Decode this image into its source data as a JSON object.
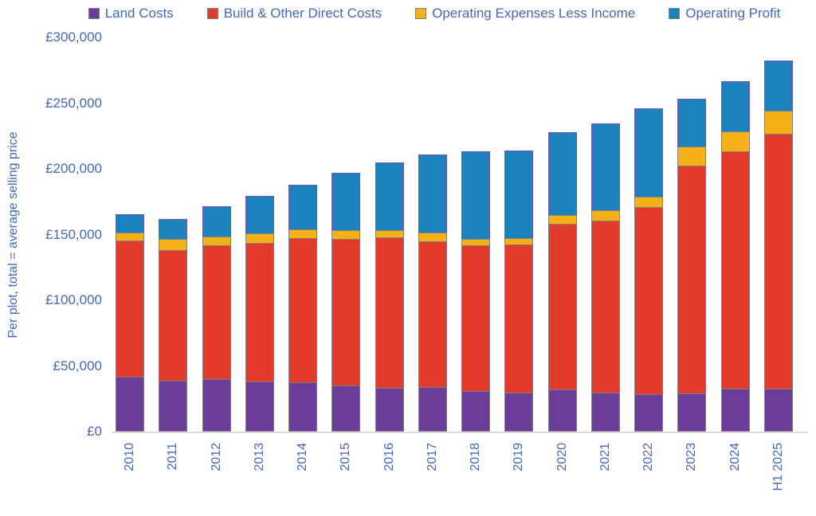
{
  "text_color": "#4468b4",
  "axis_line_color": "#dcdcdc",
  "chart_data": {
    "type": "bar",
    "stacked": true,
    "title": "",
    "xlabel": "",
    "ylabel": "Per plot, total = average selling price",
    "ylim": [
      0,
      300000
    ],
    "ytick_step": 50000,
    "ytick_labels": [
      "£0",
      "£50,000",
      "£100,000",
      "£150,000",
      "£200,000",
      "£250,000",
      "£300,000"
    ],
    "grid": false,
    "legend_position": "top",
    "categories": [
      "2010",
      "2011",
      "2012",
      "2013",
      "2014",
      "2015",
      "2016",
      "2017",
      "2018",
      "2019",
      "2020",
      "2021",
      "2022",
      "2023",
      "2024",
      "H1 2025"
    ],
    "series": [
      {
        "name": "Land Costs",
        "color": "#6b3d98",
        "values": [
          42000,
          38500,
          40000,
          38000,
          37500,
          35000,
          33500,
          34000,
          31000,
          29500,
          32000,
          30000,
          28500,
          29000,
          32500,
          33000
        ]
      },
      {
        "name": "Build & Other Direct Costs",
        "color": "#e23b2b",
        "values": [
          104000,
          100500,
          102500,
          106500,
          110500,
          112500,
          115000,
          111500,
          111500,
          113500,
          127000,
          131000,
          143000,
          174000,
          181500,
          194000
        ]
      },
      {
        "name": "Operating Expenses Less Income",
        "color": "#f6b119",
        "values": [
          6500,
          9000,
          7500,
          7500,
          7000,
          7000,
          6000,
          7000,
          5500,
          5500,
          7000,
          8500,
          8500,
          15500,
          15500,
          18500
        ]
      },
      {
        "name": "Operating Profit",
        "color": "#1c82be",
        "values": [
          14500,
          15500,
          23500,
          29000,
          35000,
          44500,
          52000,
          60500,
          67000,
          67500,
          64000,
          67000,
          68000,
          36500,
          39000,
          38500
        ]
      }
    ],
    "totals": [
      167000,
      163500,
      173500,
      181000,
      190000,
      199000,
      206500,
      213000,
      215000,
      216000,
      230000,
      236500,
      248000,
      255000,
      268500,
      284000
    ]
  }
}
